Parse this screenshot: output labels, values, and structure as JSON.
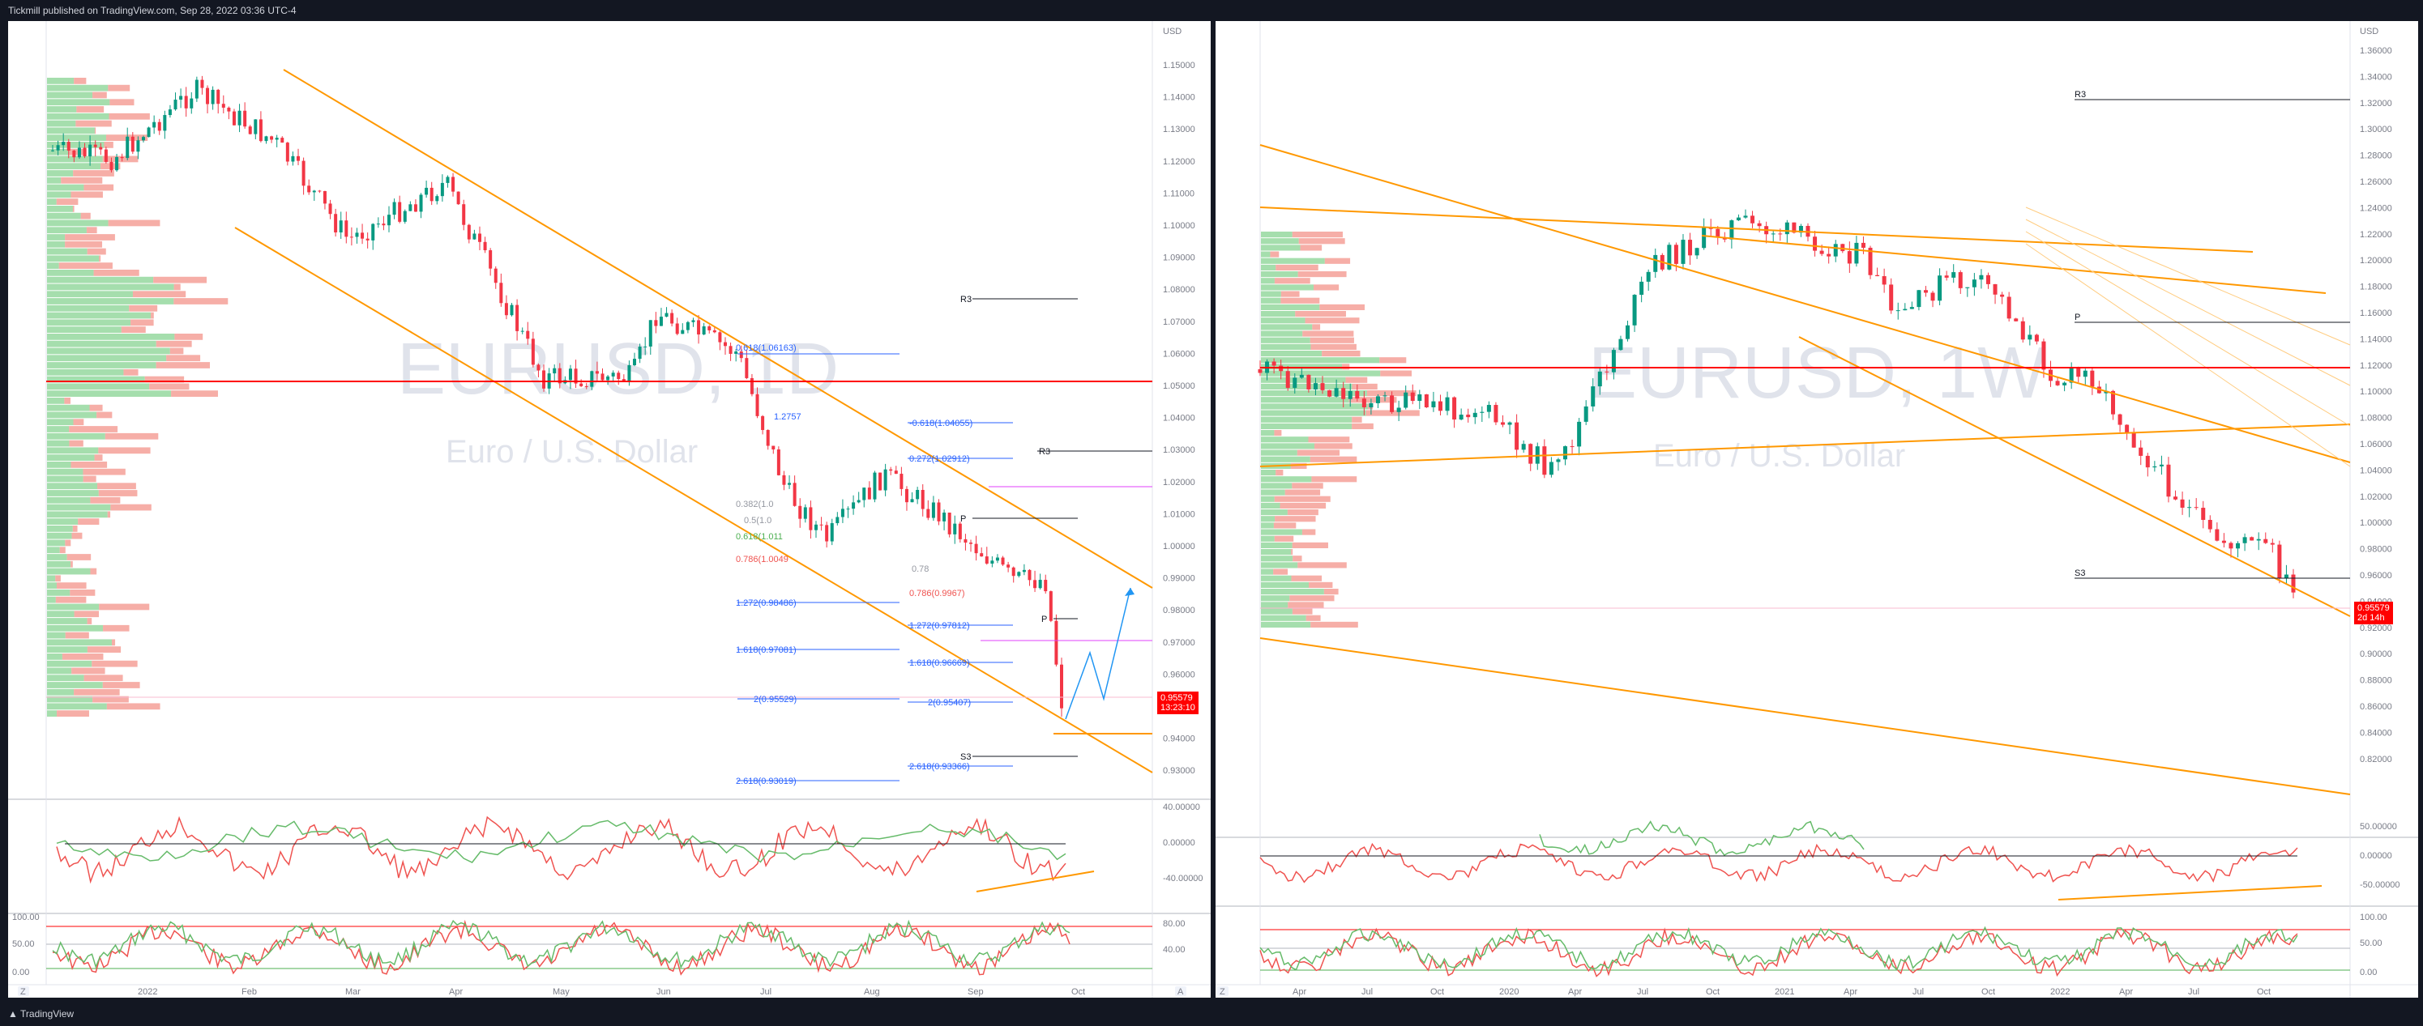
{
  "header": {
    "published": "Tickmill published on TradingView.com, Sep 28, 2022 03:36 UTC-4"
  },
  "footer": {
    "brand": "TradingView"
  },
  "colors": {
    "up": "#26a69a",
    "down": "#ef5350",
    "channel": "#ff9800",
    "fib": "#2962ff",
    "accent_red": "#ff0000"
  },
  "left_chart": {
    "watermark_symbol": "EURUSD, 1D",
    "watermark_name": "Euro / U.S. Dollar",
    "currency": "USD",
    "price_ticks": [
      "1.15000",
      "1.14000",
      "1.13000",
      "1.12000",
      "1.11000",
      "1.10000",
      "1.09000",
      "1.08000",
      "1.07000",
      "1.06000",
      "1.05000",
      "1.04000",
      "1.03000",
      "1.02000",
      "1.01000",
      "1.00000",
      "0.99000",
      "0.98000",
      "0.97000",
      "0.96000",
      "0.95000",
      "0.94000",
      "0.93000"
    ],
    "last_price": "0.95579",
    "countdown": "13:23:10",
    "time_ticks": [
      "2022",
      "Feb",
      "Mar",
      "Apr",
      "May",
      "Jun",
      "Jul",
      "Aug",
      "Sep",
      "Oct"
    ],
    "rsi_ticks": [
      "40.00000",
      "0.00000",
      "-40.00000"
    ],
    "stoch_ticks": [
      "100.00",
      "50.00",
      "0.00"
    ],
    "stoch_right_ticks": [
      "80.00",
      "40.00"
    ],
    "pivots": {
      "r3": "R3",
      "p": "P",
      "s3": "S3"
    },
    "fib_labels": [
      "0.618(1.06163)",
      "1.272(0.98486)",
      "1.618(0.97081)",
      "2(0.95529)",
      "2.618(0.93019)",
      "-0.618(1.04055)",
      "0.272(1.02912)",
      "1.272(0.97812)",
      "1.618(0.96669)",
      "2(0.95407)",
      "2.618(0.93366)",
      "0.786(1.0049",
      "0.618(1.011",
      "0.382(1.0",
      "0.5(1.0",
      "1.2757",
      "0.78",
      "0.786(0.9967)"
    ],
    "corner_buttons": [
      "Z",
      "A"
    ]
  },
  "right_chart": {
    "watermark_symbol": "EURUSD, 1W",
    "watermark_name": "Euro / U.S. Dollar",
    "currency": "USD",
    "price_ticks": [
      "1.36000",
      "1.34000",
      "1.32000",
      "1.30000",
      "1.28000",
      "1.26000",
      "1.24000",
      "1.22000",
      "1.20000",
      "1.18000",
      "1.16000",
      "1.14000",
      "1.12000",
      "1.10000",
      "1.08000",
      "1.06000",
      "1.04000",
      "1.02000",
      "1.00000",
      "0.98000",
      "0.96000",
      "0.94000",
      "0.92000",
      "0.90000",
      "0.88000",
      "0.86000",
      "0.84000",
      "0.82000"
    ],
    "last_price": "0.95579",
    "countdown": "2d 14h",
    "time_ticks": [
      "Apr",
      "Jul",
      "Oct",
      "2020",
      "Apr",
      "Jul",
      "Oct",
      "2021",
      "Apr",
      "Jul",
      "Oct",
      "2022",
      "Apr",
      "Jul",
      "Oct"
    ],
    "rsi_ticks": [
      "50.00000",
      "0.00000",
      "-50.00000"
    ],
    "stoch_ticks": [
      "100.00",
      "50.00",
      "0.00"
    ],
    "pivots": {
      "r3": "R3",
      "p": "P",
      "s3": "S3"
    },
    "corner_buttons": [
      "Z"
    ]
  }
}
